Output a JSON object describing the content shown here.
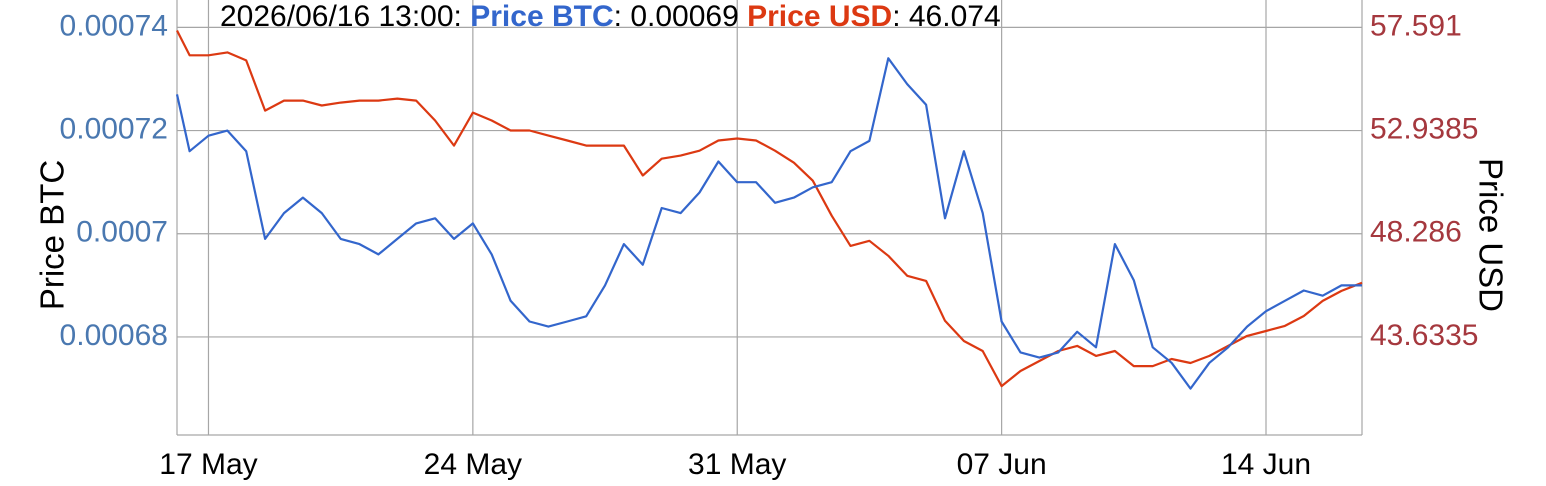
{
  "chart_data": {
    "type": "line",
    "header_time": "2026/06/16 13:00:",
    "header_separator": ":",
    "y_label": "Price BTC",
    "y2_label": "Price USD",
    "x": [
      "2026-05-16T04:00",
      "2026-05-16T12:00",
      "2026-05-17T00:00",
      "2026-05-17T12:00",
      "2026-05-18T00:00",
      "2026-05-18T12:00",
      "2026-05-19T00:00",
      "2026-05-19T12:00",
      "2026-05-20T00:00",
      "2026-05-20T12:00",
      "2026-05-21T00:00",
      "2026-05-21T12:00",
      "2026-05-22T00:00",
      "2026-05-22T12:00",
      "2026-05-23T00:00",
      "2026-05-23T12:00",
      "2026-05-24T00:00",
      "2026-05-24T12:00",
      "2026-05-25T00:00",
      "2026-05-25T12:00",
      "2026-05-26T00:00",
      "2026-05-26T12:00",
      "2026-05-27T00:00",
      "2026-05-27T12:00",
      "2026-05-28T00:00",
      "2026-05-28T12:00",
      "2026-05-29T00:00",
      "2026-05-29T12:00",
      "2026-05-30T00:00",
      "2026-05-30T12:00",
      "2026-05-31T00:00",
      "2026-05-31T12:00",
      "2026-06-01T00:00",
      "2026-06-01T12:00",
      "2026-06-02T00:00",
      "2026-06-02T12:00",
      "2026-06-03T00:00",
      "2026-06-03T12:00",
      "2026-06-04T00:00",
      "2026-06-04T12:00",
      "2026-06-05T00:00",
      "2026-06-05T12:00",
      "2026-06-06T00:00",
      "2026-06-06T12:00",
      "2026-06-07T00:00",
      "2026-06-07T12:00",
      "2026-06-08T00:00",
      "2026-06-08T12:00",
      "2026-06-09T00:00",
      "2026-06-09T12:00",
      "2026-06-10T00:00",
      "2026-06-10T12:00",
      "2026-06-11T00:00",
      "2026-06-11T12:00",
      "2026-06-12T00:00",
      "2026-06-12T12:00",
      "2026-06-13T00:00",
      "2026-06-13T12:00",
      "2026-06-14T00:00",
      "2026-06-14T12:00",
      "2026-06-15T00:00",
      "2026-06-15T12:00",
      "2026-06-16T00:00",
      "2026-06-16T13:00"
    ],
    "series": [
      {
        "name": "Price BTC",
        "color": "#3366cc",
        "values": [
          0.000727,
          0.000716,
          0.000719,
          0.00072,
          0.000716,
          0.000699,
          0.000704,
          0.000707,
          0.000704,
          0.000699,
          0.000698,
          0.000696,
          0.000699,
          0.000702,
          0.000703,
          0.000699,
          0.000702,
          0.000696,
          0.000687,
          0.000683,
          0.000682,
          0.000683,
          0.000684,
          0.00069,
          0.000698,
          0.000694,
          0.000705,
          0.000704,
          0.000708,
          0.000714,
          0.00071,
          0.00071,
          0.000706,
          0.000707,
          0.000709,
          0.00071,
          0.000716,
          0.000718,
          0.000734,
          0.000729,
          0.000725,
          0.000703,
          0.000716,
          0.000704,
          0.000683,
          0.000677,
          0.000676,
          0.000677,
          0.000681,
          0.000678,
          0.000698,
          0.000691,
          0.000678,
          0.000675,
          0.00067,
          0.000675,
          0.000678,
          0.000682,
          0.000685,
          0.000687,
          0.000689,
          0.000688,
          0.00069,
          0.00069
        ]
      },
      {
        "name": "Price USD",
        "color": "#dc3912",
        "axis": "y2",
        "values": [
          57.45,
          56.33,
          56.33,
          56.46,
          56.1,
          53.84,
          54.29,
          54.29,
          54.07,
          54.2,
          54.29,
          54.29,
          54.38,
          54.29,
          53.39,
          52.26,
          53.75,
          53.39,
          52.94,
          52.94,
          52.71,
          52.49,
          52.26,
          52.26,
          52.26,
          50.91,
          51.67,
          51.81,
          52.03,
          52.49,
          52.58,
          52.49,
          52.03,
          51.49,
          50.68,
          49.1,
          47.74,
          47.97,
          47.29,
          46.39,
          46.16,
          44.36,
          43.45,
          43.0,
          41.42,
          42.1,
          42.55,
          43.0,
          43.23,
          42.78,
          43.0,
          42.32,
          42.32,
          42.64,
          42.46,
          42.78,
          43.23,
          43.68,
          43.9,
          44.13,
          44.58,
          45.26,
          45.71,
          46.074
        ]
      }
    ],
    "xlim": [
      "2026-05-16T04:00",
      "2026-06-16T13:00"
    ],
    "xticks": [
      {
        "value": "2026-05-17T00:00",
        "label": "17 May"
      },
      {
        "value": "2026-05-24T00:00",
        "label": "24 May"
      },
      {
        "value": "2026-05-31T00:00",
        "label": "31 May"
      },
      {
        "value": "2026-06-07T00:00",
        "label": "07 Jun"
      },
      {
        "value": "2026-06-14T00:00",
        "label": "14 Jun"
      }
    ],
    "ylim": [
      0.000661,
      0.0007453
    ],
    "yticks": [
      0.00068,
      0.0007,
      0.00072,
      0.00074
    ],
    "y2lim": [
      39.2136,
      58.824
    ],
    "y2ticks": [
      43.6335,
      48.286,
      52.9385,
      57.591
    ],
    "grid": true
  }
}
